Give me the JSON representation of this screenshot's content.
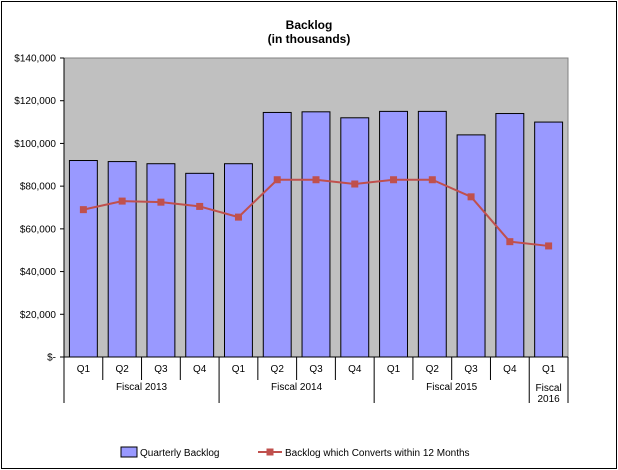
{
  "chart_data": {
    "type": "bar",
    "title": "Backlog",
    "subtitle": "(in thousands)",
    "xlabel": "",
    "ylabel": "",
    "ylim": [
      0,
      140000
    ],
    "yticks": [
      0,
      20000,
      40000,
      60000,
      80000,
      100000,
      120000,
      140000
    ],
    "ytick_labels": [
      "$-",
      "$20,000",
      "$40,000",
      "$60,000",
      "$80,000",
      "$100,000",
      "$120,000",
      "$140,000"
    ],
    "categories": [
      "Q1",
      "Q2",
      "Q3",
      "Q4",
      "Q1",
      "Q2",
      "Q3",
      "Q4",
      "Q1",
      "Q2",
      "Q3",
      "Q4",
      "Q1"
    ],
    "groups": [
      {
        "label": "Fiscal 2013",
        "start": 0,
        "count": 4
      },
      {
        "label": "Fiscal 2014",
        "start": 4,
        "count": 4
      },
      {
        "label": "Fiscal 2015",
        "start": 8,
        "count": 4
      },
      {
        "label": "Fiscal\n2016",
        "start": 12,
        "count": 1
      }
    ],
    "series": [
      {
        "name": "Quarterly Backlog",
        "type": "bar",
        "color": "#9999ff",
        "values": [
          92000,
          91500,
          90500,
          86000,
          90500,
          114500,
          114800,
          112000,
          115000,
          115000,
          104000,
          114000,
          110000
        ]
      },
      {
        "name": "Backlog which Converts within 12 Months",
        "type": "line",
        "color": "#c0504d",
        "values": [
          69000,
          73000,
          72500,
          70500,
          65500,
          83000,
          83000,
          81000,
          83000,
          83000,
          75000,
          54000,
          52000
        ]
      }
    ],
    "plot_background": "#c0c0c0",
    "grid": false,
    "legend_position": "bottom"
  }
}
